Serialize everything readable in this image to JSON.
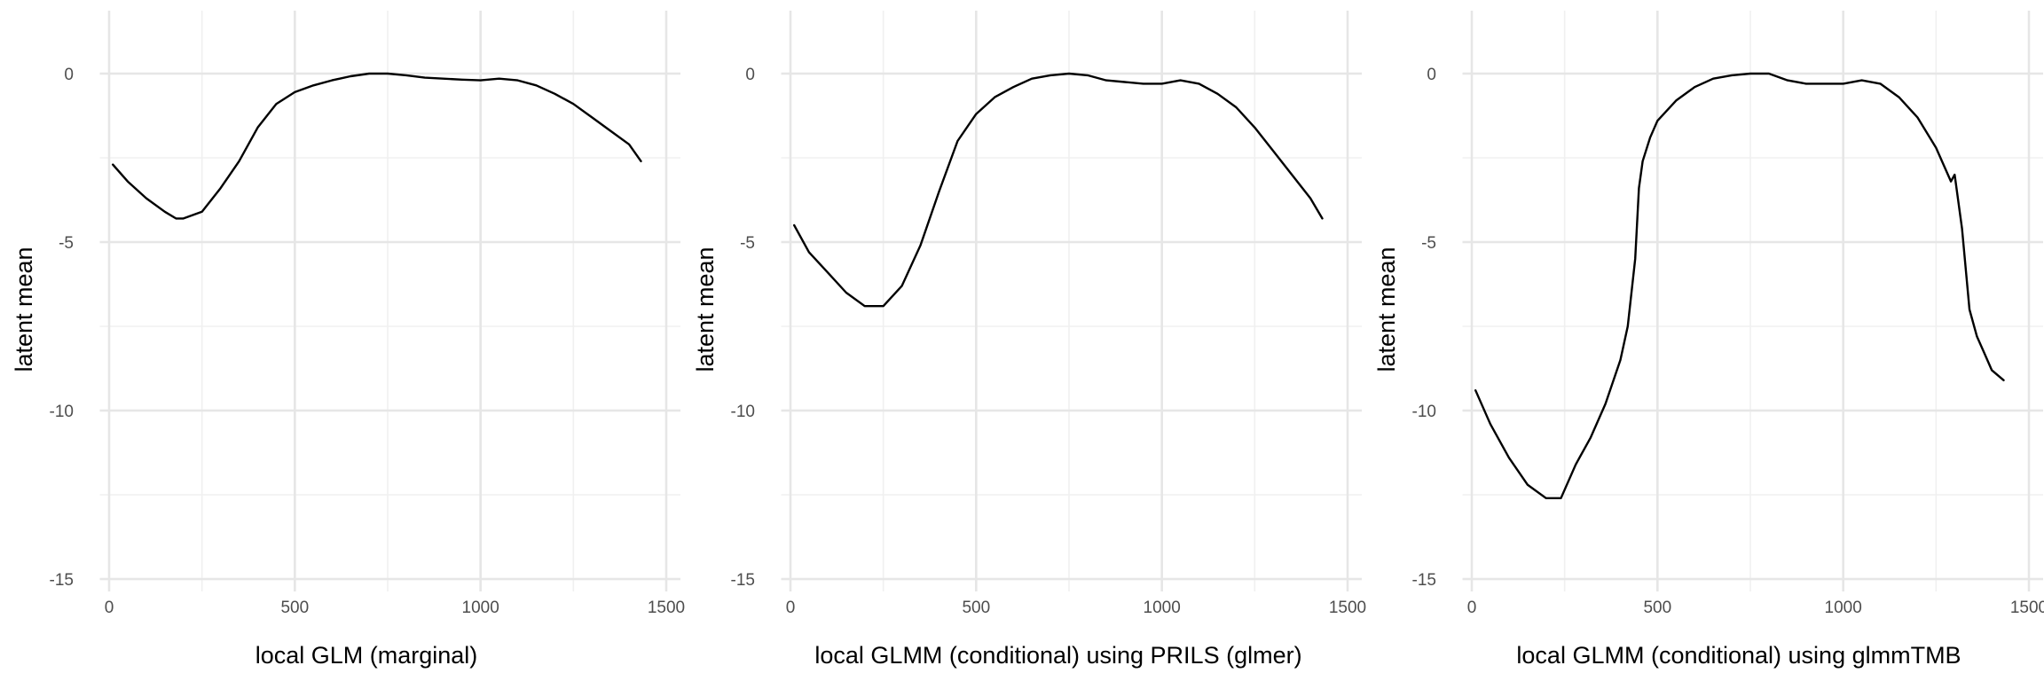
{
  "chart_data": [
    {
      "type": "line",
      "xlabel": "local GLM (marginal)",
      "ylabel": "latent mean",
      "xlim": [
        -25,
        1500
      ],
      "ylim": [
        -15.5,
        1.8
      ],
      "xticks": [
        0,
        500,
        1000,
        1500
      ],
      "xtick_labels": [
        "0",
        "500",
        "1000",
        "1500"
      ],
      "yticks": [
        0,
        -5,
        -10,
        -15
      ],
      "ytick_labels": [
        "0",
        "-5",
        "-10",
        "-15"
      ],
      "grid": true,
      "legend": "none",
      "x": [
        10,
        50,
        100,
        150,
        180,
        200,
        250,
        300,
        350,
        400,
        450,
        500,
        550,
        600,
        650,
        700,
        750,
        800,
        850,
        900,
        950,
        1000,
        1050,
        1100,
        1150,
        1200,
        1250,
        1300,
        1350,
        1400,
        1432
      ],
      "y": [
        -2.7,
        -3.2,
        -3.7,
        -4.1,
        -4.3,
        -4.3,
        -4.1,
        -3.4,
        -2.6,
        -1.6,
        -0.9,
        -0.55,
        -0.35,
        -0.2,
        -0.08,
        0.0,
        0.0,
        -0.05,
        -0.12,
        -0.15,
        -0.18,
        -0.2,
        -0.15,
        -0.2,
        -0.35,
        -0.6,
        -0.9,
        -1.3,
        -1.7,
        -2.1,
        -2.6
      ]
    },
    {
      "type": "line",
      "xlabel": "local GLMM (conditional) using PRILS (glmer)",
      "ylabel": "latent mean",
      "xlim": [
        -25,
        1500
      ],
      "ylim": [
        -15.5,
        1.8
      ],
      "xticks": [
        0,
        500,
        1000,
        1500
      ],
      "xtick_labels": [
        "0",
        "500",
        "1000",
        "1500"
      ],
      "yticks": [
        0,
        -5,
        -10,
        -15
      ],
      "ytick_labels": [
        "0",
        "-5",
        "-10",
        "-15"
      ],
      "grid": true,
      "legend": "none",
      "x": [
        10,
        50,
        100,
        150,
        200,
        250,
        300,
        350,
        400,
        450,
        500,
        550,
        600,
        650,
        700,
        750,
        800,
        850,
        900,
        950,
        1000,
        1050,
        1100,
        1150,
        1200,
        1250,
        1300,
        1350,
        1400,
        1432
      ],
      "y": [
        -4.5,
        -5.3,
        -5.9,
        -6.5,
        -6.9,
        -6.9,
        -6.3,
        -5.1,
        -3.5,
        -2.0,
        -1.2,
        -0.7,
        -0.4,
        -0.15,
        -0.05,
        0.0,
        -0.05,
        -0.2,
        -0.25,
        -0.3,
        -0.3,
        -0.2,
        -0.3,
        -0.6,
        -1.0,
        -1.6,
        -2.3,
        -3.0,
        -3.7,
        -4.3
      ]
    },
    {
      "type": "line",
      "xlabel": "local GLMM (conditional) using glmmTMB",
      "ylabel": "latent mean",
      "xlim": [
        -25,
        1500
      ],
      "ylim": [
        -15.5,
        1.8
      ],
      "xticks": [
        0,
        500,
        1000,
        1500
      ],
      "xtick_labels": [
        "0",
        "500",
        "1000",
        "1500"
      ],
      "yticks": [
        0,
        -5,
        -10,
        -15
      ],
      "ytick_labels": [
        "0",
        "-5",
        "-10",
        "-15"
      ],
      "grid": true,
      "legend": "none",
      "x": [
        10,
        50,
        100,
        150,
        200,
        240,
        280,
        320,
        360,
        400,
        420,
        440,
        450,
        460,
        480,
        500,
        550,
        600,
        650,
        700,
        750,
        800,
        850,
        900,
        950,
        1000,
        1050,
        1100,
        1150,
        1200,
        1250,
        1290,
        1300,
        1320,
        1340,
        1360,
        1380,
        1400,
        1432
      ],
      "y": [
        -9.4,
        -10.4,
        -11.4,
        -12.2,
        -12.6,
        -12.6,
        -11.6,
        -10.8,
        -9.8,
        -8.5,
        -7.5,
        -5.5,
        -3.4,
        -2.6,
        -1.9,
        -1.4,
        -0.8,
        -0.4,
        -0.15,
        -0.05,
        0.0,
        0.0,
        -0.2,
        -0.3,
        -0.3,
        -0.3,
        -0.2,
        -0.3,
        -0.7,
        -1.3,
        -2.2,
        -3.2,
        -3.0,
        -4.6,
        -7.0,
        -7.8,
        -8.3,
        -8.8,
        -9.1
      ]
    }
  ]
}
